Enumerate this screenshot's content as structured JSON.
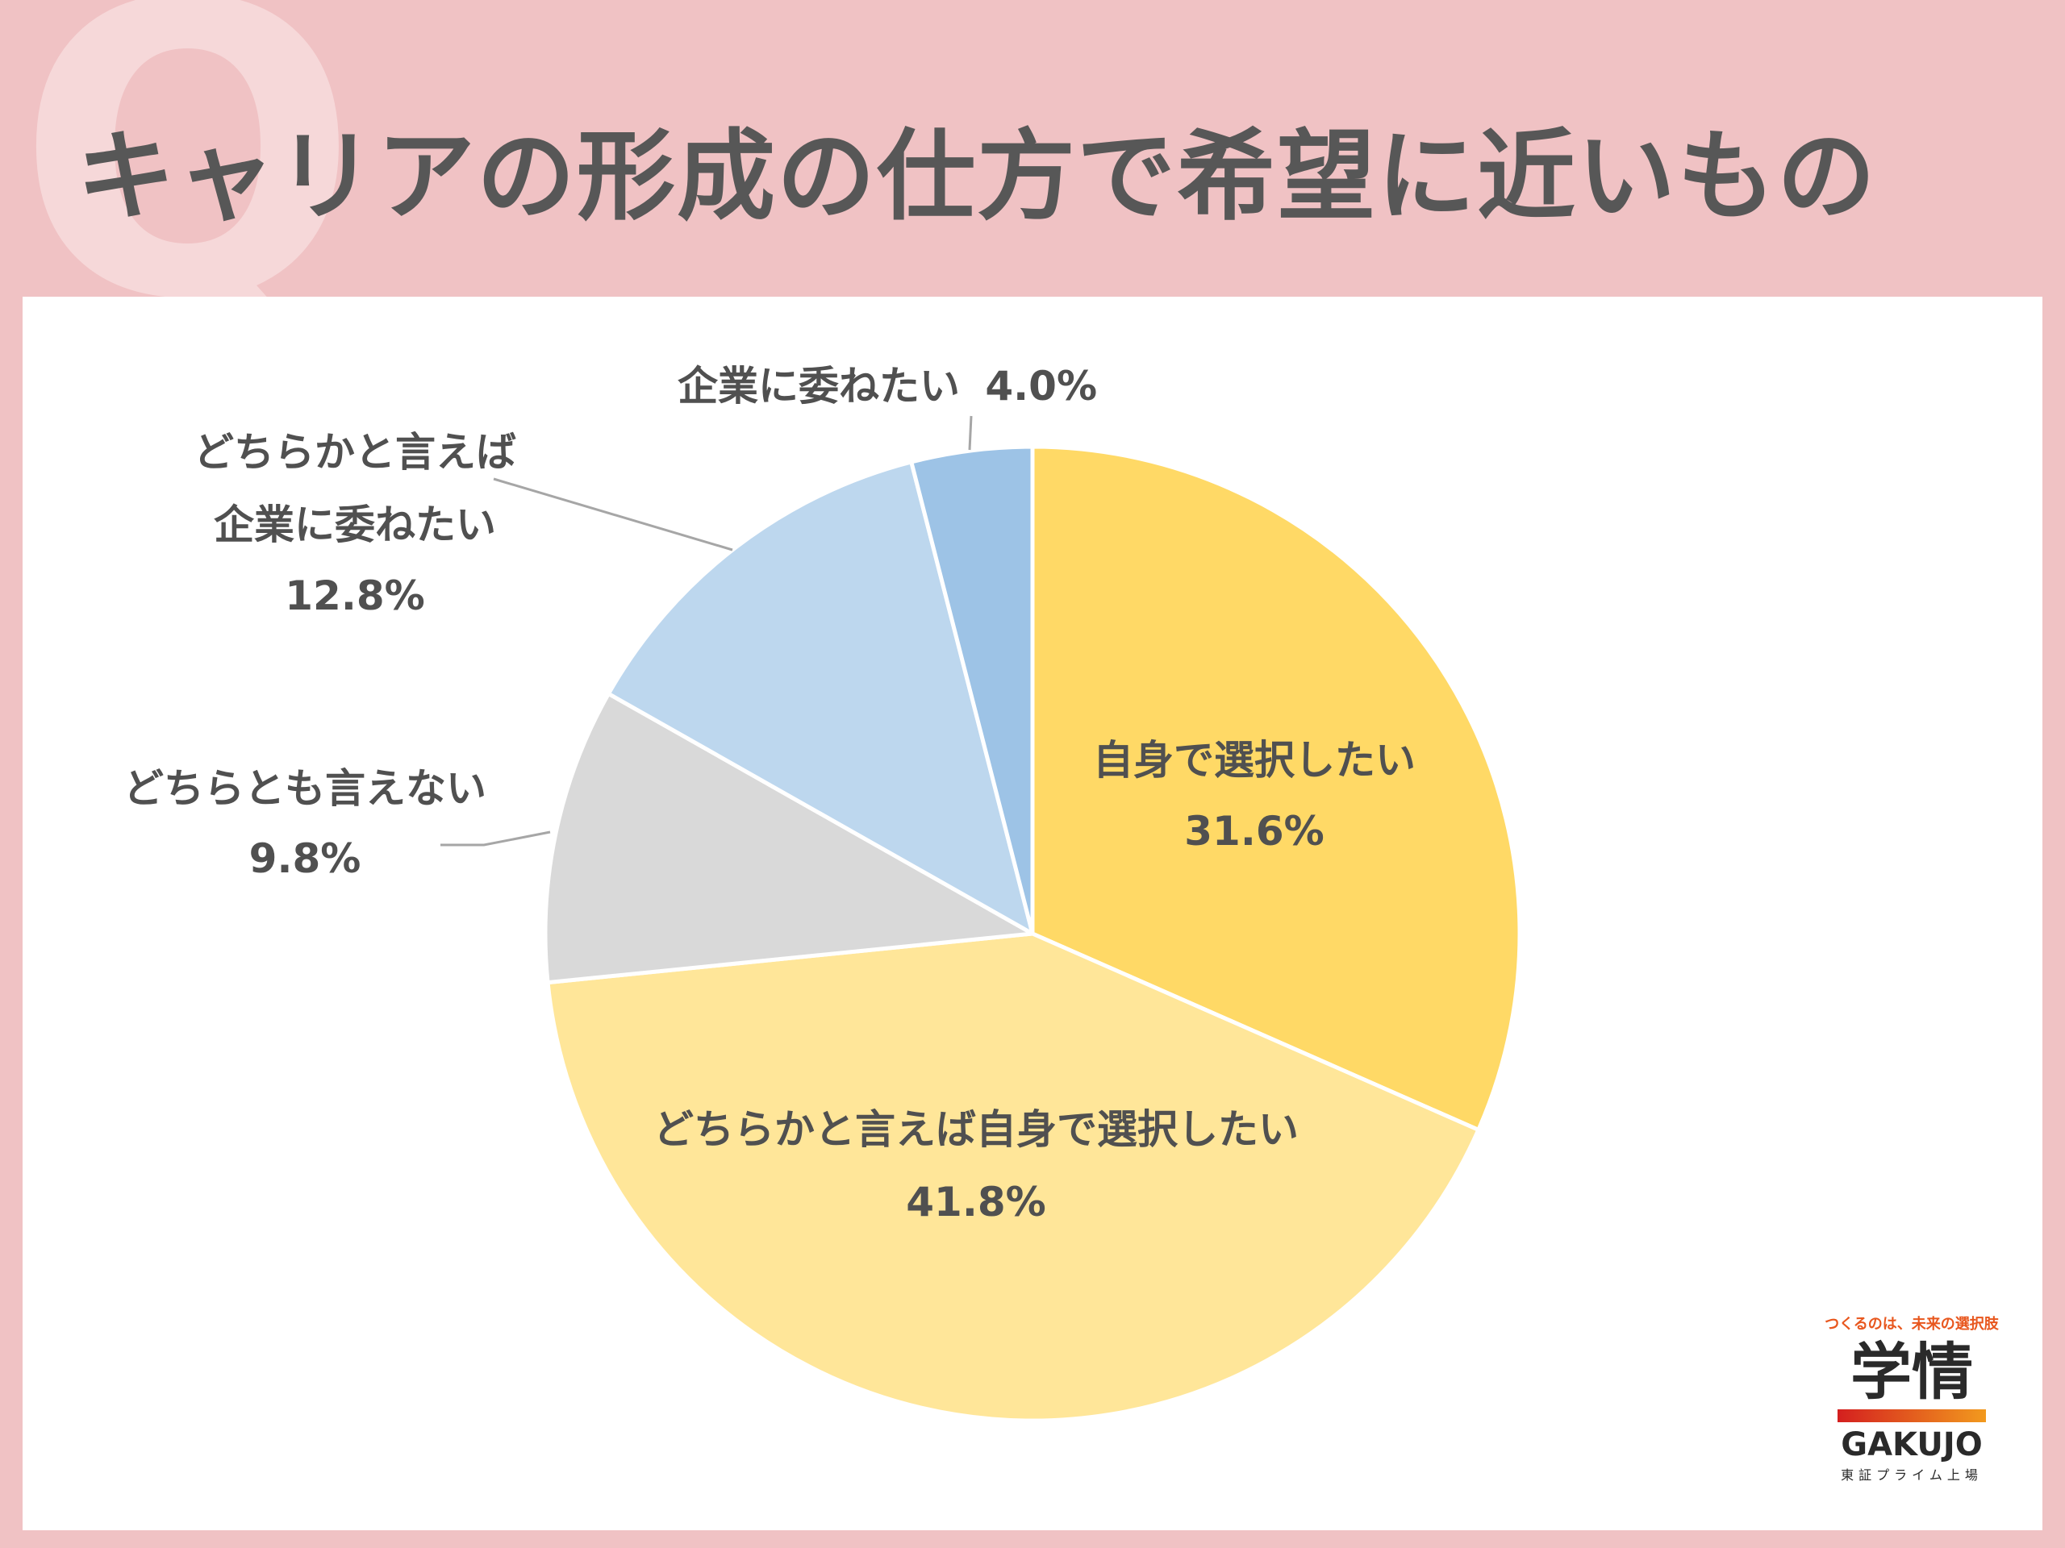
{
  "header": {
    "q_letter": "Q",
    "title": "キャリアの形成の仕方で希望に近いもの"
  },
  "chart_data": {
    "type": "pie",
    "title": "キャリアの形成の仕方で希望に近いもの",
    "start": "12 o'clock, clockwise",
    "slices": [
      {
        "name": "自身で選択したい",
        "value": 31.6,
        "value_label": "31.6%",
        "color": "#ffd966"
      },
      {
        "name": "どちらかと言えば自身で選択したい",
        "value": 41.8,
        "value_label": "41.8%",
        "color": "#ffe699"
      },
      {
        "name": "どちらとも言えない",
        "value": 9.8,
        "value_label": "9.8%",
        "color": "#d9d9d9"
      },
      {
        "name_lines": [
          "どちらかと言えば",
          "企業に委ねたい"
        ],
        "value": 12.8,
        "value_label": "12.8%",
        "color": "#bdd7ee"
      },
      {
        "name": "企業に委ねたい",
        "value": 4.0,
        "value_label": "4.0%",
        "color": "#9dc3e6"
      }
    ]
  },
  "logo": {
    "tagline": "つくるのは、未来の選択肢",
    "name_ja": "学情",
    "name_en": "GAKUJO",
    "listing": "東証プライム上場"
  }
}
